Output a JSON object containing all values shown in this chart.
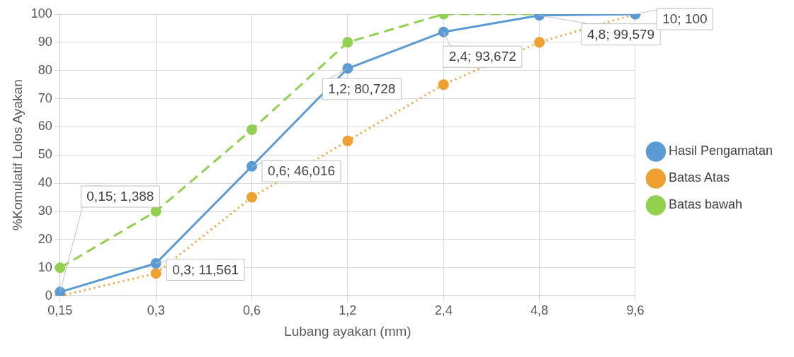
{
  "chart_data": {
    "type": "line",
    "xlabel": "Lubang ayakan (mm)",
    "ylabel": "%Komulatif Lolos Ayakan",
    "categories": [
      "0,15",
      "0,3",
      "0,6",
      "1,2",
      "2,4",
      "4,8",
      "9,6"
    ],
    "series": [
      {
        "name": "Hasil Pengamatan",
        "color": "#5b9bd5",
        "line_style": "solid",
        "values": [
          1.388,
          11.561,
          46.016,
          80.728,
          93.672,
          99.579,
          100
        ]
      },
      {
        "name": "Batas Atas",
        "color": "#f0a030",
        "line_style": "dotted",
        "values": [
          0,
          8,
          35,
          55,
          75,
          90,
          100
        ]
      },
      {
        "name": "Batas bawah",
        "color": "#92d050",
        "line_style": "dashed",
        "values": [
          10,
          30,
          59,
          90,
          100,
          100,
          100
        ]
      }
    ],
    "marker": "circle",
    "ylim": [
      0,
      100
    ],
    "yticks": [
      0,
      10,
      20,
      30,
      40,
      50,
      60,
      70,
      80,
      90,
      100
    ],
    "grid": true,
    "legend": "right",
    "annotations": [
      {
        "text": "0,15; 1,388",
        "x": "0,15",
        "y": 1.388
      },
      {
        "text": "0,3; 11,561",
        "x": "0,3",
        "y": 11.561
      },
      {
        "text": "0,6; 46,016",
        "x": "0,6",
        "y": 46.016
      },
      {
        "text": "1,2; 80,728",
        "x": "1,2",
        "y": 80.728
      },
      {
        "text": "2,4; 93,672",
        "x": "2,4",
        "y": 93.672
      },
      {
        "text": "4,8; 99,579",
        "x": "4,8",
        "y": 99.579
      },
      {
        "text": "10; 100",
        "x": "9,6",
        "y": 100
      }
    ]
  }
}
